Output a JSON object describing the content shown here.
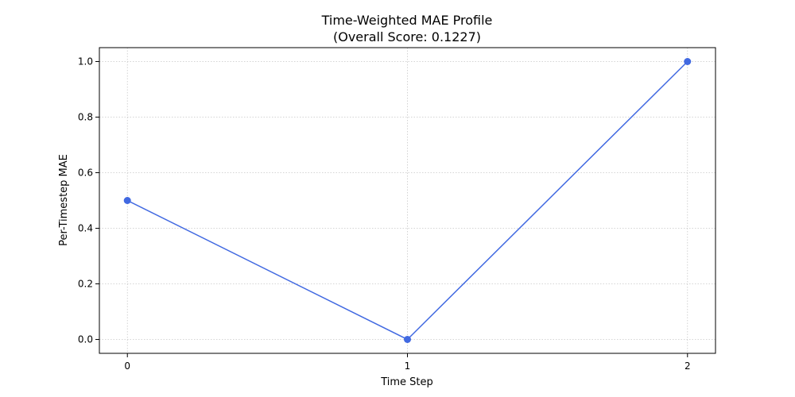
{
  "chart_data": {
    "type": "line",
    "title_line1": "Time-Weighted MAE Profile",
    "title_line2": "(Overall Score: 0.1227)",
    "xlabel": "Time Step",
    "ylabel": "Per-Timestep MAE",
    "x": [
      0,
      1,
      2
    ],
    "x_ticks": [
      "0",
      "1",
      "2"
    ],
    "y_ticks": [
      "0.0",
      "0.2",
      "0.4",
      "0.6",
      "0.8",
      "1.0"
    ],
    "series": [
      {
        "values": [
          0.5,
          0.0,
          1.0
        ],
        "color": "#4169e1",
        "marker": "circle"
      }
    ],
    "xlim": [
      -0.1,
      2.1
    ],
    "ylim": [
      -0.05,
      1.05
    ],
    "grid": true,
    "grid_style": "dotted"
  }
}
